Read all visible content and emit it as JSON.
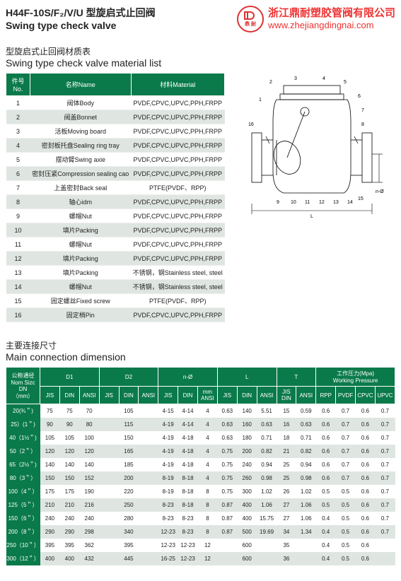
{
  "header": {
    "title_cn": "H44F-10S/F₂/V/U 型旋启式止回阀",
    "title_en": "Swing type check valve",
    "company_cn": "浙江鼎耐塑胶管阀有限公司",
    "company_url": "www.zhejiangdingnai.com",
    "logo_text": "鼎 耐"
  },
  "material_section": {
    "title_cn": "型旋启式止回阀材质表",
    "title_en": "Swing type check valve material list",
    "columns": {
      "no": "件号No.",
      "name": "名称Name",
      "material": "材料Material"
    },
    "rows": [
      {
        "no": "1",
        "name": "阀体Body",
        "material": "PVDF,CPVC,UPVC,PPH,FRPP"
      },
      {
        "no": "2",
        "name": "阀盖Bonnet",
        "material": "PVDF,CPVC,UPVC,PPH,FRPP"
      },
      {
        "no": "3",
        "name": "活板Moving board",
        "material": "PVDF,CPVC,UPVC,PPH,FRPP"
      },
      {
        "no": "4",
        "name": "密封板托盘Sealing ring tray",
        "material": "PVDF,CPVC,UPVC,PPH,FRPP"
      },
      {
        "no": "5",
        "name": "摆动臂Swing axie",
        "material": "PVDF,CPVC,UPVC,PPH,FRPP"
      },
      {
        "no": "6",
        "name": "密封压紧Compression sealing cao",
        "material": "PVDF,CPVC,UPVC,PPH,FRPP"
      },
      {
        "no": "7",
        "name": "上盖密封Back seal",
        "material": "PTFE(PVDF、RPP)"
      },
      {
        "no": "8",
        "name": "轴心idm",
        "material": "PVDF,CPVC,UPVC,PPH,FRPP"
      },
      {
        "no": "9",
        "name": "螺帽Nut",
        "material": "PVDF,CPVC,UPVC,PPH,FRPP"
      },
      {
        "no": "10",
        "name": "填片Packing",
        "material": "PVDF,CPVC,UPVC,PPH,FRPP"
      },
      {
        "no": "11",
        "name": "螺帽Nut",
        "material": "PVDF,CPVC,UPVC,PPH,FRPP"
      },
      {
        "no": "12",
        "name": "填片Packing",
        "material": "PVDF,CPVC,UPVC,PPH,FRPP"
      },
      {
        "no": "13",
        "name": "填片Packing",
        "material": "不锈钢，钢Stainless steel, steel"
      },
      {
        "no": "14",
        "name": "螺帽Nut",
        "material": "不锈钢，钢Stainless steel, steel"
      },
      {
        "no": "15",
        "name": "固定螺丝Fixed screw",
        "material": "PTFE(PVDF、RPP)"
      },
      {
        "no": "16",
        "name": "固定梢Pin",
        "material": "PVDF,CPVC,UPVC,PPH,FRPP"
      }
    ]
  },
  "diagram": {
    "labels": [
      "1",
      "2",
      "3",
      "4",
      "5",
      "6",
      "7",
      "8",
      "9",
      "10",
      "11",
      "12",
      "13",
      "14",
      "15",
      "16"
    ],
    "dim_label": "n-Ø"
  },
  "dimension_section": {
    "title_cn": "主要连接尺寸",
    "title_en": "Main connection dimension",
    "header_groups": {
      "dn": "公称通径\nNom Sizc\nDN\n（mm）",
      "d1": "D1",
      "d2": "D2",
      "no": "n-Ø",
      "l": "L",
      "t": "T",
      "wp": "工作压力(Mpa)\nWorking Pressure"
    },
    "sub_headers": [
      "JIS",
      "DIN",
      "ANSI",
      "JIS",
      "DIN",
      "ANSI",
      "JIS",
      "DIN",
      "mm\nANSI",
      "JIS",
      "DIN",
      "ANSI",
      "JIS\nDIN",
      "ANSI",
      "RPP",
      "PVDF",
      "CPVC",
      "UPVC"
    ],
    "rows": [
      {
        "dn": "20(¾＂)",
        "v": [
          "75",
          "75",
          "70",
          "",
          "105",
          "",
          "4-15",
          "4-14",
          "4",
          "0.63",
          "140",
          "5.51",
          "15",
          "0.59",
          "0.6",
          "0.7",
          "0.6",
          "0.7"
        ]
      },
      {
        "dn": "25）(1＂)",
        "v": [
          "90",
          "90",
          "80",
          "",
          "115",
          "",
          "4-19",
          "4-14",
          "4",
          "0.63",
          "160",
          "0.63",
          "16",
          "0.63",
          "0.6",
          "0.7",
          "0.6",
          "0.7"
        ]
      },
      {
        "dn": "40（1½＂)",
        "v": [
          "105",
          "105",
          "100",
          "",
          "150",
          "",
          "4-19",
          "4-18",
          "4",
          "0.63",
          "180",
          "0.71",
          "18",
          "0.71",
          "0.6",
          "0.7",
          "0.6",
          "0.7"
        ]
      },
      {
        "dn": "50（2＂）",
        "v": [
          "120",
          "120",
          "120",
          "",
          "165",
          "",
          "4-19",
          "4-18",
          "4",
          "0.75",
          "200",
          "0.82",
          "21",
          "0.82",
          "0.6",
          "0.7",
          "0.6",
          "0.7"
        ]
      },
      {
        "dn": "65（2½＂)",
        "v": [
          "140",
          "140",
          "140",
          "",
          "185",
          "",
          "4-19",
          "4-18",
          "4",
          "0.75",
          "240",
          "0.94",
          "25",
          "0.94",
          "0.6",
          "0.7",
          "0.6",
          "0.7"
        ]
      },
      {
        "dn": "80（3＂）",
        "v": [
          "150",
          "150",
          "152",
          "",
          "200",
          "",
          "8-19",
          "8-18",
          "4",
          "0.75",
          "260",
          "0.98",
          "25",
          "0.98",
          "0.6",
          "0.7",
          "0.6",
          "0.7"
        ]
      },
      {
        "dn": "100（4＂）",
        "v": [
          "175",
          "175",
          "190",
          "",
          "220",
          "",
          "8-19",
          "8-18",
          "8",
          "0.75",
          "300",
          "1.02",
          "26",
          "1.02",
          "0.5",
          "0.5",
          "0.6",
          "0.7"
        ]
      },
      {
        "dn": "125（5＂）",
        "v": [
          "210",
          "210",
          "216",
          "",
          "250",
          "",
          "8-23",
          "8-18",
          "8",
          "0.87",
          "400",
          "1.06",
          "27",
          "1.06",
          "0.5",
          "0.5",
          "0.6",
          "0.7"
        ]
      },
      {
        "dn": "150（6＂）",
        "v": [
          "240",
          "240",
          "240",
          "",
          "280",
          "",
          "8-23",
          "8-23",
          "8",
          "0.87",
          "400",
          "15.75",
          "27",
          "1.06",
          "0.4",
          "0.5",
          "0.6",
          "0.7"
        ]
      },
      {
        "dn": "200（8＂）",
        "v": [
          "290",
          "290",
          "298",
          "",
          "340",
          "",
          "12-23",
          "8-23",
          "8",
          "0.87",
          "500",
          "19.69",
          "34",
          "1.34",
          "0.4",
          "0.5",
          "0.6",
          "0.7"
        ]
      },
      {
        "dn": "250（10＂）",
        "v": [
          "395",
          "395",
          "362",
          "",
          "395",
          "",
          "12-23",
          "12-23",
          "12",
          "",
          "600",
          "",
          "35",
          "",
          "0.4",
          "0.5",
          "0.6",
          ""
        ]
      },
      {
        "dn": "300（12＂）",
        "v": [
          "400",
          "400",
          "432",
          "",
          "445",
          "",
          "16-25",
          "12-23",
          "12",
          "",
          "600",
          "",
          "36",
          "",
          "0.4",
          "0.5",
          "0.6",
          ""
        ]
      }
    ]
  },
  "colors": {
    "header_green": "#0a7a4a",
    "row_alt": "#dfe6e2",
    "brand_red": "#e33"
  }
}
